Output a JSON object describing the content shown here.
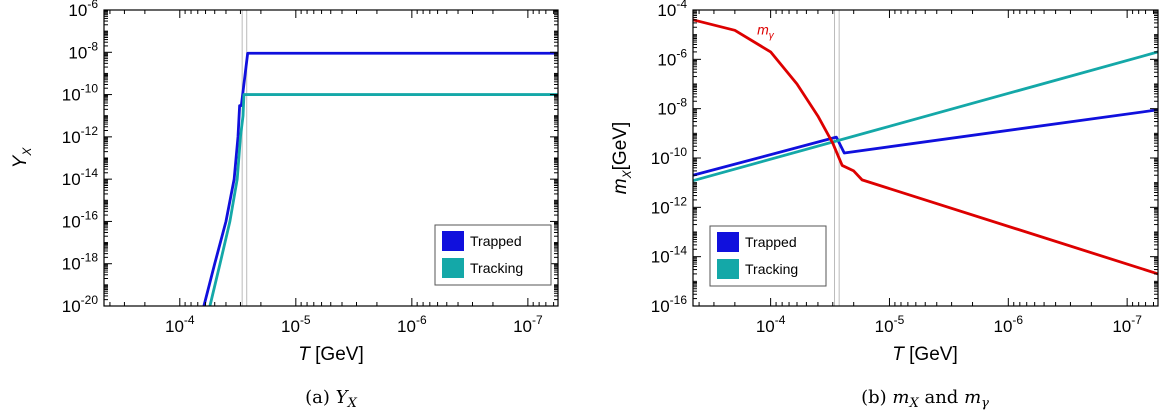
{
  "chart_data": [
    {
      "type": "line",
      "caption": "(a) Y_X",
      "caption_tag": "(a)",
      "caption_sym": "Y",
      "caption_sub": "X",
      "xlabel": "T",
      "xlabel_unit": "[GeV]",
      "ylabel": "Y",
      "ylabel_sub": "X",
      "x_scale": "log",
      "x_reversed": true,
      "y_scale": "log",
      "xlim": [
        0.00045,
        5.5e-08
      ],
      "ylim": [
        1e-20,
        1e-06
      ],
      "x_ticks": [
        {
          "base": "10",
          "exp": "-4",
          "value": 0.0001
        },
        {
          "base": "10",
          "exp": "-5",
          "value": 1e-05
        },
        {
          "base": "10",
          "exp": "-6",
          "value": 1e-06
        },
        {
          "base": "10",
          "exp": "-7",
          "value": 1e-07
        }
      ],
      "y_ticks": [
        {
          "base": "10",
          "exp": "-6",
          "value": 1e-06
        },
        {
          "base": "10",
          "exp": "-8",
          "value": 1e-08
        },
        {
          "base": "10",
          "exp": "-10",
          "value": 1e-10
        },
        {
          "base": "10",
          "exp": "-12",
          "value": 1e-12
        },
        {
          "base": "10",
          "exp": "-14",
          "value": 1e-14
        },
        {
          "base": "10",
          "exp": "-16",
          "value": 1e-16
        },
        {
          "base": "10",
          "exp": "-18",
          "value": 1e-18
        },
        {
          "base": "10",
          "exp": "-20",
          "value": 1e-20
        }
      ],
      "vlines": [
        2.9e-05,
        2.65e-05
      ],
      "legend": "bottom-right",
      "series": [
        {
          "name": "Trapped",
          "color": "#1010dd",
          "x": [
            6.2e-05,
            5e-05,
            4e-05,
            3.4e-05,
            3.15e-05,
            3.05e-05,
            3e-05,
            2.95e-05,
            2.6e-05,
            1e-06,
            5.5e-08
          ],
          "y": [
            1e-20,
            1e-18,
            1e-16,
            1e-14,
            1e-12,
            3e-11,
            3e-11,
            3e-11,
            9e-09,
            9e-09,
            9e-09
          ]
        },
        {
          "name": "Tracking",
          "color": "#14a8a8",
          "x": [
            5.5e-05,
            4.5e-05,
            3.7e-05,
            3.2e-05,
            3e-05,
            2.85e-05,
            2.8e-05,
            1e-06,
            5.5e-08
          ],
          "y": [
            1e-20,
            1e-18,
            1e-16,
            1e-14,
            1e-12,
            1e-11,
            1e-10,
            1e-10,
            1e-10
          ]
        }
      ]
    },
    {
      "type": "line",
      "caption": "(b) m_X and m_γ",
      "caption_tag": "(b)",
      "caption_sym1": "m",
      "caption_sub1": "X",
      "caption_and": "and",
      "caption_sym2": "m",
      "caption_sub2": "γ",
      "xlabel": "T",
      "xlabel_unit": "[GeV]",
      "ylabel": "m",
      "ylabel_sub": "X",
      "ylabel_unit": "[GeV]",
      "x_scale": "log",
      "x_reversed": true,
      "y_scale": "log",
      "xlim": [
        0.00045,
        5.5e-08
      ],
      "ylim": [
        1e-16,
        0.0001
      ],
      "x_ticks": [
        {
          "base": "10",
          "exp": "-4",
          "value": 0.0001
        },
        {
          "base": "10",
          "exp": "-5",
          "value": 1e-05
        },
        {
          "base": "10",
          "exp": "-6",
          "value": 1e-06
        },
        {
          "base": "10",
          "exp": "-7",
          "value": 1e-07
        }
      ],
      "y_ticks": [
        {
          "base": "10",
          "exp": "-4",
          "value": 0.0001
        },
        {
          "base": "10",
          "exp": "-6",
          "value": 1e-06
        },
        {
          "base": "10",
          "exp": "-8",
          "value": 1e-08
        },
        {
          "base": "10",
          "exp": "-10",
          "value": 1e-10
        },
        {
          "base": "10",
          "exp": "-12",
          "value": 1e-12
        },
        {
          "base": "10",
          "exp": "-14",
          "value": 1e-14
        },
        {
          "base": "10",
          "exp": "-16",
          "value": 1e-16
        }
      ],
      "vlines": [
        2.9e-05,
        2.65e-05
      ],
      "legend": "bottom-left",
      "annotation": {
        "sym": "m",
        "sub": "γ",
        "x": 0.00013,
        "y": 1e-05,
        "color": "#dd0000"
      },
      "series": [
        {
          "name": "Trapped",
          "color": "#1010dd",
          "x": [
            0.00045,
            2.8e-05,
            2.4e-05,
            5.5e-08
          ],
          "y": [
            2e-11,
            7e-10,
            1.6e-10,
            9e-09
          ]
        },
        {
          "name": "Tracking",
          "color": "#14a8a8",
          "x": [
            0.00045,
            5.5e-08
          ],
          "y": [
            1.2e-11,
            2e-06
          ]
        },
        {
          "name": "",
          "color": "#dd0000",
          "legend": false,
          "x": [
            0.00045,
            0.0002,
            0.0001,
            6e-05,
            4e-05,
            3e-05,
            2.5e-05,
            2e-05,
            1.7e-05,
            5.5e-08
          ],
          "y": [
            4e-05,
            1.5e-05,
            2e-06,
            1e-07,
            5e-09,
            4e-10,
            5e-11,
            3e-11,
            1.3e-11,
            2e-15
          ]
        }
      ]
    }
  ]
}
